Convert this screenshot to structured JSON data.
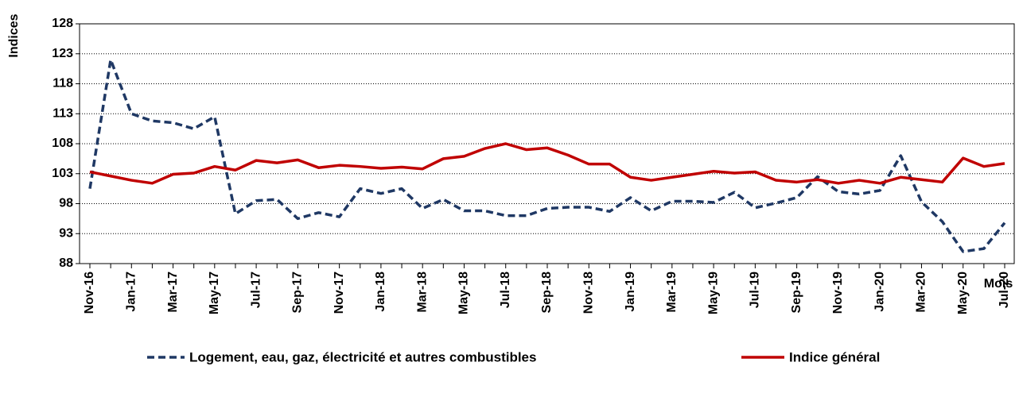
{
  "chart_data": {
    "type": "line",
    "y_label": "Indices",
    "x_label": "Mois",
    "categories": [
      "Nov-16",
      null,
      "Jan-17",
      null,
      "Mar-17",
      null,
      "May-17",
      null,
      "Jul-17",
      null,
      "Sep-17",
      null,
      "Nov-17",
      null,
      "Jan-18",
      null,
      "Mar-18",
      null,
      "May-18",
      null,
      "Jul-18",
      null,
      "Sep-18",
      null,
      "Nov-18",
      null,
      "Jan-19",
      null,
      "Mar-19",
      null,
      "May-19",
      null,
      "Jul-19",
      null,
      "Sep-19",
      null,
      "Nov-19",
      null,
      "Jan-20",
      null,
      "Mar-20",
      null,
      "May-20",
      null,
      "Jul-20"
    ],
    "series": [
      {
        "name": "Logement, eau, gaz, électricité et autres combustibles",
        "color": "#1f3864",
        "dashed": true,
        "values": [
          100.5,
          122,
          113,
          111.8,
          111.5,
          110.5,
          112.5,
          96.3,
          98.5,
          98.7,
          95.5,
          96.5,
          95.8,
          100.5,
          99.7,
          100.5,
          97.2,
          98.7,
          96.8,
          96.8,
          96.0,
          96.0,
          97.2,
          97.4,
          97.4,
          96.7,
          99.0,
          96.8,
          98.4,
          98.4,
          98.2,
          99.9,
          97.3,
          98.1,
          99.0,
          102.5,
          100.0,
          99.6,
          100.2,
          106.0,
          98.3,
          95.0,
          90.0,
          90.5,
          94.8
        ]
      },
      {
        "name": "Indice général",
        "color": "#c00000",
        "dashed": false,
        "values": [
          103.3,
          102.6,
          101.9,
          101.4,
          102.9,
          103.1,
          104.2,
          103.6,
          105.2,
          104.8,
          105.3,
          104.0,
          104.4,
          104.2,
          103.9,
          104.1,
          103.8,
          105.5,
          105.9,
          107.2,
          108.0,
          107.0,
          107.3,
          106.1,
          104.6,
          104.6,
          102.4,
          101.9,
          102.4,
          102.9,
          103.4,
          103.1,
          103.3,
          101.9,
          101.6,
          102.0,
          101.4,
          101.9,
          101.4,
          102.4,
          102.0,
          101.6,
          105.6,
          104.2,
          104.7
        ]
      }
    ],
    "ylim": [
      88,
      128
    ],
    "yticks": [
      88,
      93,
      98,
      103,
      108,
      113,
      118,
      123,
      128
    ],
    "grid": true
  }
}
